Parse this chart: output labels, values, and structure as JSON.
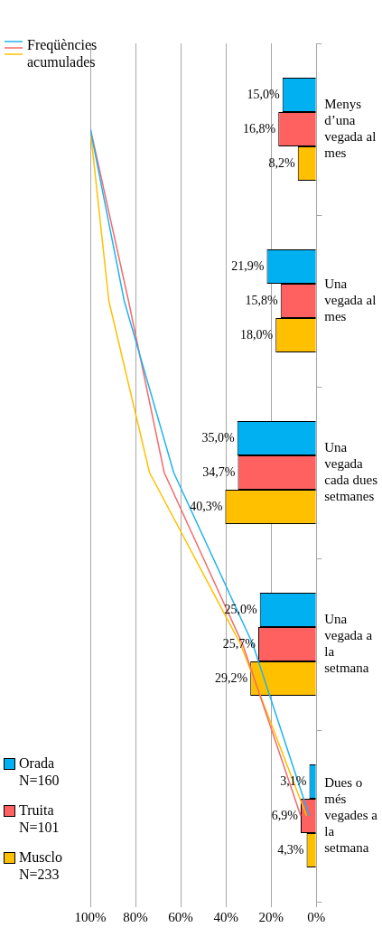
{
  "chart_data": {
    "type": "bar",
    "orientation": "horizontal",
    "categories": [
      "Menys d’una vegada al mes",
      "Una vegada al mes",
      "Una vegada cada dues setmanes",
      "Una vegada a la setmana",
      "Dues o més vegades a la setmana"
    ],
    "series": [
      {
        "name": "Orada N=160",
        "color": "#00b0f0",
        "values": [
          15.0,
          21.9,
          35.0,
          25.0,
          3.1
        ],
        "value_labels": [
          "15,0%",
          "21,9%",
          "35,0%",
          "25,0%",
          "3,1%"
        ]
      },
      {
        "name": "Truita N=101",
        "color": "#ff6161",
        "values": [
          16.8,
          15.8,
          34.7,
          25.7,
          6.9
        ],
        "value_labels": [
          "16,8%",
          "15,8%",
          "34,7%",
          "25,7%",
          "6,9%"
        ]
      },
      {
        "name": "Musclo N=233",
        "color": "#ffc000",
        "values": [
          8.2,
          18.0,
          40.3,
          29.2,
          4.3
        ],
        "value_labels": [
          "8,2%",
          "18,0%",
          "40,3%",
          "29,2%",
          "4,3%"
        ]
      },
      {
        "type": "line",
        "color": "#1fb3f0",
        "values": [
          100.0,
          85.0,
          63.1,
          28.1,
          3.1
        ]
      },
      {
        "type": "line",
        "color": "#f36a6a",
        "values": [
          99.9,
          83.1,
          67.3,
          32.6,
          6.9
        ]
      },
      {
        "type": "line",
        "color": "#ffc000",
        "values": [
          100.0,
          91.8,
          73.8,
          33.5,
          4.3
        ]
      }
    ],
    "xlim": [
      100,
      0
    ],
    "xticks": [
      {
        "value": 100,
        "label": "100%"
      },
      {
        "value": 80,
        "label": "80%"
      },
      {
        "value": 60,
        "label": "60%"
      },
      {
        "value": 40,
        "label": "40%"
      },
      {
        "value": 20,
        "label": "20%"
      },
      {
        "value": 0,
        "label": "0%"
      }
    ],
    "grid": "x",
    "legend": "left",
    "marker": "none",
    "line_style": "solid",
    "annotations": [
      "Freqüències acumulades"
    ]
  }
}
